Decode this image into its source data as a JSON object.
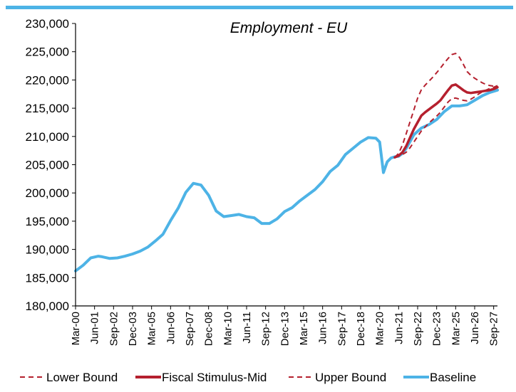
{
  "chart_data": {
    "type": "line",
    "title": "Employment - EU",
    "xlabel": "",
    "ylabel": "",
    "ylim": [
      180000,
      230000
    ],
    "y_ticks": [
      "180,000",
      "185,000",
      "190,000",
      "195,000",
      "200,000",
      "205,000",
      "210,000",
      "215,000",
      "220,000",
      "225,000",
      "230,000"
    ],
    "x_ticks": [
      "Mar-00",
      "Jun-01",
      "Sep-02",
      "Dec-03",
      "Mar-05",
      "Jun-06",
      "Sep-07",
      "Dec-08",
      "Mar-10",
      "Jun-11",
      "Sep-12",
      "Dec-13",
      "Mar-15",
      "Jun-16",
      "Sep-17",
      "Dec-18",
      "Mar-20",
      "Jun-21",
      "Sep-22",
      "Dec-23",
      "Mar-25",
      "Jun-26",
      "Sep-27"
    ],
    "x_range": [
      "Mar-00",
      "Dec-27"
    ],
    "grid": false,
    "legend_position": "bottom",
    "colors": {
      "top_rule": "#4db3e6",
      "lower_bound": "#b5202e",
      "fiscal_mid": "#b5202e",
      "upper_bound": "#b5202e",
      "baseline": "#4db3e6"
    },
    "series": [
      {
        "name": "Lower Bound",
        "style": "dashed",
        "x": [
          "Mar-21",
          "Jun-21",
          "Sep-21",
          "Dec-21",
          "Mar-22",
          "Jun-22",
          "Sep-22",
          "Dec-22",
          "Mar-23",
          "Jun-23",
          "Sep-23",
          "Dec-23",
          "Mar-24",
          "Jun-24",
          "Sep-24",
          "Dec-24",
          "Mar-25",
          "Jun-25",
          "Sep-25",
          "Dec-25",
          "Mar-26",
          "Jun-26",
          "Sep-26",
          "Dec-26",
          "Mar-27",
          "Jun-27",
          "Sep-27",
          "Dec-27"
        ],
        "values": [
          206300,
          206500,
          206800,
          207200,
          208000,
          209000,
          210000,
          211000,
          211700,
          212400,
          213000,
          213600,
          214300,
          215200,
          216100,
          216700,
          216800,
          216600,
          216400,
          216300,
          216600,
          217000,
          217500,
          217900,
          218200,
          218500,
          218700,
          219000
        ]
      },
      {
        "name": "Fiscal Stimulus-Mid",
        "style": "solid-thick",
        "x": [
          "Mar-21",
          "Jun-21",
          "Sep-21",
          "Dec-21",
          "Mar-22",
          "Jun-22",
          "Sep-22",
          "Dec-22",
          "Mar-23",
          "Jun-23",
          "Sep-23",
          "Dec-23",
          "Mar-24",
          "Jun-24",
          "Sep-24",
          "Dec-24",
          "Mar-25",
          "Jun-25",
          "Sep-25",
          "Dec-25",
          "Mar-26",
          "Jun-26",
          "Sep-26",
          "Dec-26",
          "Mar-27",
          "Jun-27",
          "Sep-27",
          "Dec-27"
        ],
        "values": [
          206300,
          206600,
          207200,
          208300,
          209800,
          211300,
          212500,
          213700,
          214300,
          214800,
          215300,
          215800,
          216400,
          217300,
          218200,
          219000,
          219200,
          218700,
          218200,
          217800,
          217700,
          217800,
          217900,
          218000,
          218100,
          218200,
          218400,
          218700
        ]
      },
      {
        "name": "Upper Bound",
        "style": "dashed",
        "x": [
          "Mar-21",
          "Jun-21",
          "Sep-21",
          "Dec-21",
          "Mar-22",
          "Jun-22",
          "Sep-22",
          "Dec-22",
          "Mar-23",
          "Jun-23",
          "Sep-23",
          "Dec-23",
          "Mar-24",
          "Jun-24",
          "Sep-24",
          "Dec-24",
          "Mar-25",
          "Jun-25",
          "Sep-25",
          "Dec-25",
          "Mar-26",
          "Jun-26",
          "Sep-26",
          "Dec-26",
          "Mar-27",
          "Jun-27",
          "Sep-27",
          "Dec-27"
        ],
        "values": [
          206300,
          207000,
          208500,
          210500,
          212600,
          214700,
          216800,
          218300,
          219100,
          219800,
          220500,
          221300,
          222100,
          223000,
          223800,
          224500,
          224700,
          224000,
          222800,
          221500,
          220800,
          220300,
          219900,
          219500,
          219200,
          219000,
          218900,
          218800
        ]
      },
      {
        "name": "Baseline",
        "style": "solid-thick",
        "x": [
          "Mar-00",
          "Sep-00",
          "Mar-01",
          "Sep-01",
          "Dec-01",
          "Jun-02",
          "Dec-02",
          "Jun-03",
          "Dec-03",
          "Jun-04",
          "Dec-04",
          "Jun-05",
          "Dec-05",
          "Jun-06",
          "Dec-06",
          "Jun-07",
          "Dec-07",
          "Jun-08",
          "Dec-08",
          "Jun-09",
          "Dec-09",
          "Jun-10",
          "Dec-10",
          "Jun-11",
          "Dec-11",
          "Jun-12",
          "Dec-12",
          "Jun-13",
          "Dec-13",
          "Jun-14",
          "Dec-14",
          "Jun-15",
          "Dec-15",
          "Jun-16",
          "Dec-16",
          "Jun-17",
          "Dec-17",
          "Jun-18",
          "Dec-18",
          "Jun-19",
          "Dec-19",
          "Mar-20",
          "Jun-20",
          "Sep-20",
          "Dec-20",
          "Mar-21",
          "Jun-21",
          "Sep-21",
          "Dec-21",
          "Jun-22",
          "Dec-22",
          "Jun-23",
          "Dec-23",
          "Jun-24",
          "Dec-24",
          "Jun-25",
          "Dec-25",
          "Jun-26",
          "Dec-26",
          "Jun-27",
          "Dec-27"
        ],
        "values": [
          186200,
          187200,
          188500,
          188800,
          188700,
          188400,
          188500,
          188800,
          189200,
          189700,
          190400,
          191500,
          192700,
          195100,
          197300,
          200100,
          201700,
          201400,
          199600,
          196800,
          195800,
          196000,
          196200,
          195800,
          195600,
          194600,
          194600,
          195400,
          196700,
          197400,
          198600,
          199600,
          200600,
          202000,
          203800,
          204900,
          206800,
          207900,
          209000,
          209800,
          209700,
          209000,
          203600,
          205500,
          206200,
          206400,
          206500,
          207000,
          207900,
          210300,
          211500,
          212100,
          213000,
          214400,
          215400,
          215400,
          215600,
          216400,
          217200,
          217800,
          218200
        ]
      }
    ]
  }
}
